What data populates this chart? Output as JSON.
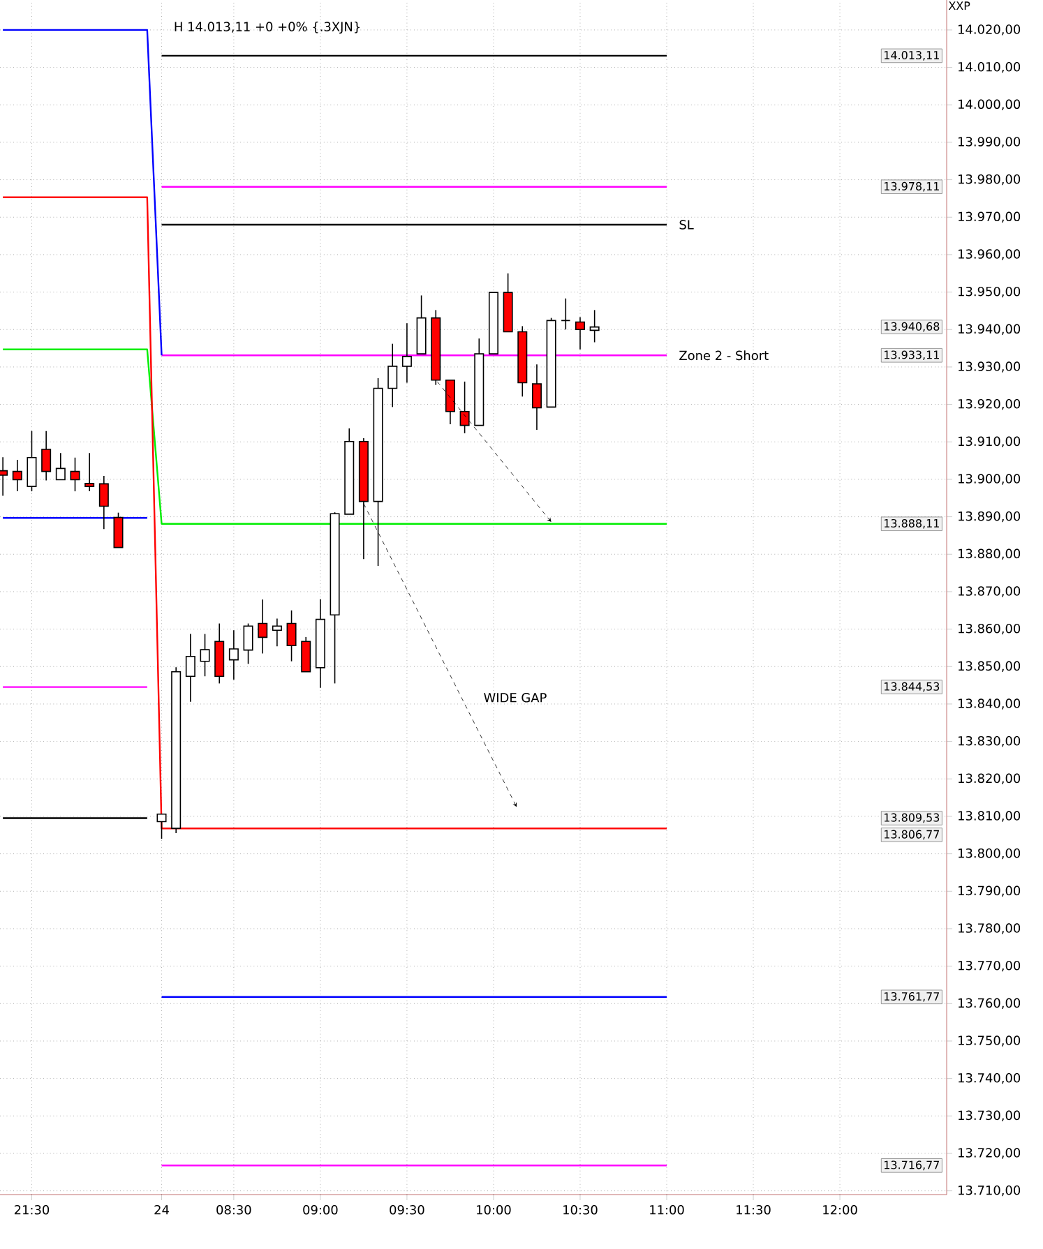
{
  "chart_data": {
    "type": "candlestick",
    "title": "H 14.013,11 +0 +0% {.3XJN}",
    "ylabel": "XXP",
    "categories": [
      null,
      null,
      "21:30",
      null,
      null,
      null,
      null,
      null,
      null,
      null,
      null,
      "24",
      null,
      null,
      null,
      null,
      "08:30",
      null,
      null,
      null,
      null,
      null,
      "09:00",
      null,
      null,
      null,
      null,
      null,
      "09:30",
      null,
      null,
      null,
      null,
      null,
      "10:00",
      null,
      null,
      null,
      null,
      null,
      "10:30",
      null,
      null,
      null,
      null,
      null,
      "11:00",
      null,
      null,
      null,
      null,
      null,
      "11:30",
      null,
      null,
      null,
      null,
      null,
      "12:00",
      null,
      null,
      null,
      null,
      null,
      null,
      null
    ],
    "ohlc": [
      [
        13902.3,
        13905.9,
        13895.6,
        13901.1
      ],
      [
        13902.1,
        13905.2,
        13896.8,
        13899.9
      ],
      [
        13898.1,
        13912.9,
        13896.8,
        13905.8
      ],
      [
        13908.0,
        13912.9,
        13899.7,
        13902.1
      ],
      [
        13899.9,
        13907.0,
        13899.9,
        13902.9
      ],
      [
        13902.1,
        13905.8,
        13896.8,
        13899.9
      ],
      [
        13898.9,
        13907.0,
        13896.8,
        13898.1
      ],
      [
        13898.8,
        13900.9,
        13886.7,
        13892.8
      ],
      [
        13889.8,
        13891.1,
        13881.8,
        13881.8
      ],
      null,
      null,
      [
        13808.6,
        13810.6,
        13804.0,
        13810.6
      ],
      [
        13806.8,
        13849.8,
        13805.5,
        13848.6
      ],
      [
        13847.4,
        13858.7,
        13840.6,
        13852.7
      ],
      [
        13851.4,
        13858.7,
        13847.4,
        13854.5
      ],
      [
        13856.7,
        13861.5,
        13845.5,
        13847.4
      ],
      [
        13851.8,
        13859.7,
        13846.5,
        13854.7
      ],
      [
        13854.4,
        13861.5,
        13850.7,
        13860.8
      ],
      [
        13861.5,
        13867.9,
        13853.5,
        13857.8
      ],
      [
        13859.7,
        13862.8,
        13855.4,
        13860.8
      ],
      [
        13861.5,
        13865.0,
        13851.4,
        13855.6
      ],
      [
        13856.7,
        13857.9,
        13848.6,
        13848.6
      ],
      [
        13849.7,
        13868.0,
        13844.3,
        13862.6
      ],
      [
        13863.8,
        13891.2,
        13845.5,
        13890.8
      ],
      [
        13890.7,
        13913.6,
        13890.7,
        13910.1
      ],
      [
        13910.1,
        13911.0,
        13878.7,
        13894.1
      ],
      [
        13894.1,
        13927.0,
        13876.9,
        13924.3
      ],
      [
        13924.3,
        13936.2,
        13919.3,
        13930.2
      ],
      [
        13930.2,
        13941.7,
        13925.8,
        13932.8
      ],
      [
        13933.5,
        13949.1,
        13933.5,
        13943.1
      ],
      [
        13943.1,
        13945.2,
        13925.2,
        13926.5
      ],
      [
        13926.5,
        13926.5,
        13914.7,
        13918.1
      ],
      [
        13918.1,
        13926.1,
        13912.3,
        13914.4
      ],
      [
        13914.4,
        13937.6,
        13914.4,
        13933.5
      ],
      [
        13933.5,
        13949.9,
        13933.5,
        13949.9
      ],
      [
        13949.9,
        13955.0,
        13939.4,
        13939.4
      ],
      [
        13939.4,
        13940.9,
        13922.1,
        13925.8
      ],
      [
        13925.5,
        13930.7,
        13913.2,
        13919.1
      ],
      [
        13919.3,
        13943.1,
        13919.3,
        13942.4
      ],
      [
        13942.4,
        13948.3,
        13940.0,
        13942.4
      ],
      [
        13942.0,
        13943.3,
        13934.7,
        13940.0
      ],
      [
        13939.8,
        13945.2,
        13936.6,
        13940.68
      ],
      null,
      null,
      null,
      null,
      null,
      null,
      null,
      null,
      null,
      null,
      null,
      null,
      null,
      null,
      null,
      null,
      null,
      null,
      null,
      null,
      null,
      null,
      null,
      null
    ],
    "series": [
      {
        "type": "line",
        "color": "#000000",
        "values": [
          null,
          null,
          null,
          null,
          null,
          null,
          null,
          null,
          null,
          null,
          null,
          14013.11,
          14013.11,
          14013.11,
          14013.11,
          14013.11,
          14013.11,
          14013.11,
          14013.11,
          14013.11,
          14013.11,
          14013.11,
          14013.11,
          14013.11,
          14013.11,
          14013.11,
          14013.11,
          14013.11,
          14013.11,
          14013.11,
          14013.11,
          14013.11,
          14013.11,
          14013.11,
          14013.11,
          14013.11,
          14013.11,
          14013.11,
          14013.11,
          14013.11,
          14013.11,
          14013.11,
          14013.11,
          14013.11,
          14013.11,
          14013.11,
          14013.11,
          null,
          null,
          null,
          null,
          null,
          null,
          null,
          null,
          null,
          null,
          null,
          null,
          null,
          null,
          null,
          null,
          null,
          null,
          null
        ]
      },
      {
        "type": "line",
        "color": "#ff00ff",
        "values": [
          null,
          null,
          null,
          null,
          null,
          null,
          null,
          null,
          null,
          null,
          null,
          13978.11,
          13978.11,
          13978.11,
          13978.11,
          13978.11,
          13978.11,
          13978.11,
          13978.11,
          13978.11,
          13978.11,
          13978.11,
          13978.11,
          13978.11,
          13978.11,
          13978.11,
          13978.11,
          13978.11,
          13978.11,
          13978.11,
          13978.11,
          13978.11,
          13978.11,
          13978.11,
          13978.11,
          13978.11,
          13978.11,
          13978.11,
          13978.11,
          13978.11,
          13978.11,
          13978.11,
          13978.11,
          13978.11,
          13978.11,
          13978.11,
          13978.11,
          null,
          null,
          null,
          null,
          null,
          null,
          null,
          null,
          null,
          null,
          null,
          null,
          null,
          null,
          null,
          null,
          null,
          null,
          null
        ]
      },
      {
        "type": "line",
        "name": "SL",
        "color": "#000000",
        "values": [
          null,
          null,
          null,
          null,
          null,
          null,
          null,
          null,
          null,
          null,
          null,
          13968,
          13968,
          13968,
          13968,
          13968,
          13968,
          13968,
          13968,
          13968,
          13968,
          13968,
          13968,
          13968,
          13968,
          13968,
          13968,
          13968,
          13968,
          13968,
          13968,
          13968,
          13968,
          13968,
          13968,
          13968,
          13968,
          13968,
          13968,
          13968,
          13968,
          13968,
          13968,
          13968,
          13968,
          13968,
          13968,
          null,
          null,
          null,
          null,
          null,
          null,
          null,
          null,
          null,
          null,
          null,
          null,
          null,
          null,
          null,
          null,
          null,
          null,
          null
        ]
      },
      {
        "type": "line",
        "name": "Zone 2 - Short",
        "color": "#ff00ff",
        "values": [
          null,
          null,
          null,
          null,
          null,
          null,
          null,
          null,
          null,
          null,
          null,
          13933.11,
          13933.11,
          13933.11,
          13933.11,
          13933.11,
          13933.11,
          13933.11,
          13933.11,
          13933.11,
          13933.11,
          13933.11,
          13933.11,
          13933.11,
          13933.11,
          13933.11,
          13933.11,
          13933.11,
          13933.11,
          13933.11,
          13933.11,
          13933.11,
          13933.11,
          13933.11,
          13933.11,
          13933.11,
          13933.11,
          13933.11,
          13933.11,
          13933.11,
          13933.11,
          13933.11,
          13933.11,
          13933.11,
          13933.11,
          13933.11,
          13933.11,
          null,
          null,
          null,
          null,
          null,
          null,
          null,
          null,
          null,
          null,
          null,
          null,
          null,
          null,
          null,
          null,
          null,
          null,
          null
        ]
      },
      {
        "type": "line",
        "color": "#00ee00",
        "values": [
          13934.7,
          13934.7,
          13934.7,
          13934.7,
          13934.7,
          13934.7,
          13934.7,
          13934.7,
          13934.7,
          13934.7,
          13934.7,
          13888.11,
          13888.11,
          13888.11,
          13888.11,
          13888.11,
          13888.11,
          13888.11,
          13888.11,
          13888.11,
          13888.11,
          13888.11,
          13888.11,
          13888.11,
          13888.11,
          13888.11,
          13888.11,
          13888.11,
          13888.11,
          13888.11,
          13888.11,
          13888.11,
          13888.11,
          13888.11,
          13888.11,
          13888.11,
          13888.11,
          13888.11,
          13888.11,
          13888.11,
          13888.11,
          13888.11,
          13888.11,
          13888.11,
          13888.11,
          13888.11,
          13888.11,
          null,
          null,
          null,
          null,
          null,
          null,
          null,
          null,
          null,
          null,
          null,
          null,
          null,
          null,
          null,
          null,
          null,
          null,
          null
        ]
      },
      {
        "type": "line",
        "color": "#ff0000",
        "values": [
          13975.3,
          13975.3,
          13975.3,
          13975.3,
          13975.3,
          13975.3,
          13975.3,
          13975.3,
          13975.3,
          13975.3,
          13975.3,
          13806.77,
          13806.77,
          13806.77,
          13806.77,
          13806.77,
          13806.77,
          13806.77,
          13806.77,
          13806.77,
          13806.77,
          13806.77,
          13806.77,
          13806.77,
          13806.77,
          13806.77,
          13806.77,
          13806.77,
          13806.77,
          13806.77,
          13806.77,
          13806.77,
          13806.77,
          13806.77,
          13806.77,
          13806.77,
          13806.77,
          13806.77,
          13806.77,
          13806.77,
          13806.77,
          13806.77,
          13806.77,
          13806.77,
          13806.77,
          13806.77,
          13806.77,
          null,
          null,
          null,
          null,
          null,
          null,
          null,
          null,
          null,
          null,
          null,
          null,
          null,
          null,
          null,
          null,
          null,
          null,
          null
        ]
      },
      {
        "type": "line",
        "color": "#0000ff",
        "values": [
          14020,
          14020,
          14020,
          14020,
          14020,
          14020,
          14020,
          14020,
          14020,
          14020,
          14020,
          13933.11,
          null,
          null,
          null,
          null,
          null,
          null,
          null,
          null,
          null,
          null,
          null,
          null,
          null,
          null,
          null,
          null,
          null,
          null,
          null,
          null,
          null,
          null,
          null,
          null,
          null,
          null,
          null,
          null,
          null,
          null,
          null,
          null,
          null,
          null,
          null,
          null,
          null,
          null,
          null,
          null,
          null,
          null,
          null,
          null,
          null,
          null,
          null,
          null,
          null,
          null,
          null,
          null,
          null,
          null
        ]
      },
      {
        "type": "line",
        "color": "#0000ff",
        "values": [
          null,
          null,
          null,
          null,
          null,
          null,
          null,
          null,
          null,
          null,
          null,
          13761.77,
          13761.77,
          13761.77,
          13761.77,
          13761.77,
          13761.77,
          13761.77,
          13761.77,
          13761.77,
          13761.77,
          13761.77,
          13761.77,
          13761.77,
          13761.77,
          13761.77,
          13761.77,
          13761.77,
          13761.77,
          13761.77,
          13761.77,
          13761.77,
          13761.77,
          13761.77,
          13761.77,
          13761.77,
          13761.77,
          13761.77,
          13761.77,
          13761.77,
          13761.77,
          13761.77,
          13761.77,
          13761.77,
          13761.77,
          13761.77,
          13761.77,
          null,
          null,
          null,
          null,
          null,
          null,
          null,
          null,
          null,
          null,
          null,
          null,
          null,
          null,
          null,
          null,
          null,
          null,
          null
        ]
      },
      {
        "type": "line",
        "color": "#ff00ff",
        "values": [
          null,
          null,
          null,
          null,
          null,
          null,
          null,
          null,
          null,
          null,
          null,
          13716.77,
          13716.77,
          13716.77,
          13716.77,
          13716.77,
          13716.77,
          13716.77,
          13716.77,
          13716.77,
          13716.77,
          13716.77,
          13716.77,
          13716.77,
          13716.77,
          13716.77,
          13716.77,
          13716.77,
          13716.77,
          13716.77,
          13716.77,
          13716.77,
          13716.77,
          13716.77,
          13716.77,
          13716.77,
          13716.77,
          13716.77,
          13716.77,
          13716.77,
          13716.77,
          13716.77,
          13716.77,
          13716.77,
          13716.77,
          13716.77,
          13716.77,
          null,
          null,
          null,
          null,
          null,
          null,
          null,
          null,
          null,
          null,
          null,
          null,
          null,
          null,
          null,
          null,
          null,
          null,
          null
        ]
      },
      {
        "type": "line",
        "color": "#0000ff",
        "values": [
          13889.7,
          13889.7,
          13889.7,
          13889.7,
          13889.7,
          13889.7,
          13889.7,
          13889.7,
          13889.7,
          13889.7,
          13889.7,
          null,
          null,
          null,
          null,
          null,
          null,
          null,
          null,
          null,
          null,
          null,
          null,
          null,
          null,
          null,
          null,
          null,
          null,
          null,
          null,
          null,
          null,
          null,
          null,
          null,
          null,
          null,
          null,
          null,
          null,
          null,
          null,
          null,
          null,
          null,
          null,
          null,
          null,
          null,
          null,
          null,
          null,
          null,
          null,
          null,
          null,
          null,
          null,
          null,
          null,
          null,
          null,
          null,
          null,
          null
        ]
      },
      {
        "type": "line",
        "color": "#ff00ff",
        "values": [
          13844.53,
          13844.53,
          13844.53,
          13844.53,
          13844.53,
          13844.53,
          13844.53,
          13844.53,
          13844.53,
          13844.53,
          13844.53,
          null,
          null,
          null,
          null,
          null,
          null,
          null,
          null,
          null,
          null,
          null,
          null,
          null,
          null,
          null,
          null,
          null,
          null,
          null,
          null,
          null,
          null,
          null,
          null,
          null,
          null,
          null,
          null,
          null,
          null,
          null,
          null,
          null,
          null,
          null,
          null,
          null,
          null,
          null,
          null,
          null,
          null,
          null,
          null,
          null,
          null,
          null,
          null,
          null,
          null,
          null,
          null,
          null,
          null,
          null
        ]
      },
      {
        "type": "line",
        "color": "#000000",
        "values": [
          13809.53,
          13809.53,
          13809.53,
          13809.53,
          13809.53,
          13809.53,
          13809.53,
          13809.53,
          13809.53,
          13809.53,
          13809.53,
          null,
          null,
          null,
          null,
          null,
          null,
          null,
          null,
          null,
          null,
          null,
          null,
          null,
          null,
          null,
          null,
          null,
          null,
          null,
          null,
          null,
          null,
          null,
          null,
          null,
          null,
          null,
          null,
          null,
          null,
          null,
          null,
          null,
          null,
          null,
          null,
          null,
          null,
          null,
          null,
          null,
          null,
          null,
          null,
          null,
          null,
          null,
          null,
          null,
          null,
          null,
          null,
          null,
          null,
          null
        ]
      }
    ],
    "ylim": [
      13709,
      14028
    ],
    "yticks": [
      {
        "value": 13710,
        "label": "13.710,00"
      },
      {
        "value": 13720,
        "label": "13.720,00"
      },
      {
        "value": 13730,
        "label": "13.730,00"
      },
      {
        "value": 13740,
        "label": "13.740,00"
      },
      {
        "value": 13750,
        "label": "13.750,00"
      },
      {
        "value": 13760,
        "label": "13.760,00"
      },
      {
        "value": 13770,
        "label": "13.770,00"
      },
      {
        "value": 13780,
        "label": "13.780,00"
      },
      {
        "value": 13790,
        "label": "13.790,00"
      },
      {
        "value": 13800,
        "label": "13.800,00"
      },
      {
        "value": 13810,
        "label": "13.810,00"
      },
      {
        "value": 13820,
        "label": "13.820,00"
      },
      {
        "value": 13830,
        "label": "13.830,00"
      },
      {
        "value": 13840,
        "label": "13.840,00"
      },
      {
        "value": 13850,
        "label": "13.850,00"
      },
      {
        "value": 13860,
        "label": "13.860,00"
      },
      {
        "value": 13870,
        "label": "13.870,00"
      },
      {
        "value": 13880,
        "label": "13.880,00"
      },
      {
        "value": 13890,
        "label": "13.890,00"
      },
      {
        "value": 13900,
        "label": "13.900,00"
      },
      {
        "value": 13910,
        "label": "13.910,00"
      },
      {
        "value": 13920,
        "label": "13.920,00"
      },
      {
        "value": 13930,
        "label": "13.930,00"
      },
      {
        "value": 13940,
        "label": "13.940,00"
      },
      {
        "value": 13950,
        "label": "13.950,00"
      },
      {
        "value": 13960,
        "label": "13.960,00"
      },
      {
        "value": 13970,
        "label": "13.970,00"
      },
      {
        "value": 13980,
        "label": "13.980,00"
      },
      {
        "value": 13990,
        "label": "13.990,00"
      },
      {
        "value": 14000,
        "label": "14.000,00"
      },
      {
        "value": 14010,
        "label": "14.010,00"
      },
      {
        "value": 14020,
        "label": "14.020,00"
      }
    ],
    "grid": true,
    "annotations": [
      "14.013,11",
      "13.978,11",
      "13.940,68",
      "13.933,11",
      "13.888,11",
      "13.844,53",
      "13.809,53",
      "13.806,77",
      "13.761,77",
      "13.716,77",
      "WIDE GAP"
    ]
  }
}
